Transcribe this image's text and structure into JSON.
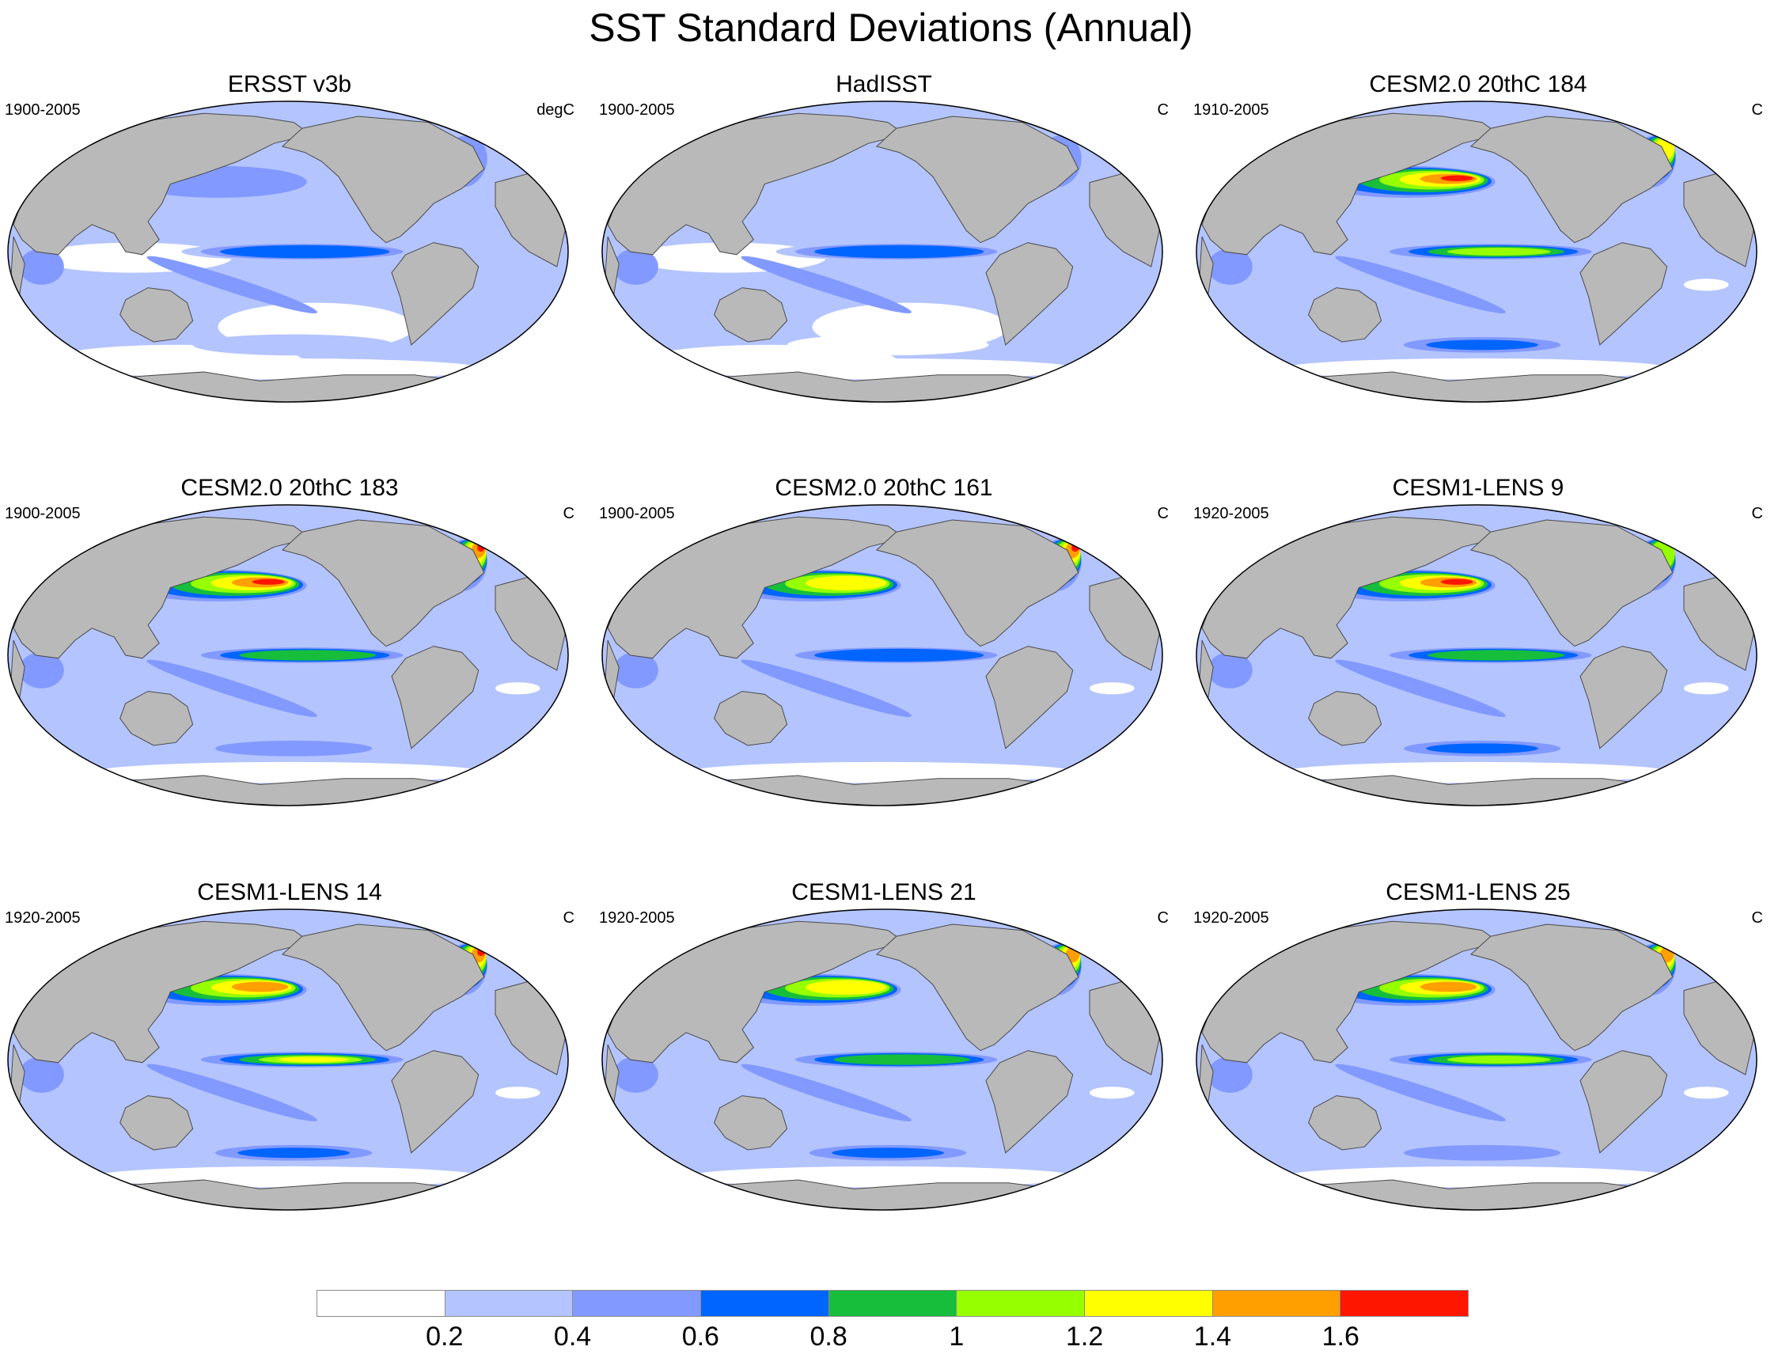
{
  "title": "SST Standard Deviations (Annual)",
  "colors": {
    "land": "#b9b9b9",
    "land_edge": "#4a4a4a",
    "ocean_border": "#000000"
  },
  "legend": {
    "labels": [
      "0.2",
      "0.4",
      "0.6",
      "0.8",
      "1",
      "1.2",
      "1.4",
      "1.6"
    ],
    "colors": [
      "#ffffff",
      "#b4c4ff",
      "#8299ff",
      "#0064ff",
      "#16be3c",
      "#96ff00",
      "#ffff00",
      "#ff9f00",
      "#ff1600"
    ]
  },
  "panels": [
    {
      "title": "ERSST v3b",
      "years": "1900-2005",
      "units": "degC",
      "nino_levels": [
        1,
        2,
        3
      ],
      "npac_levels": [
        1,
        2
      ],
      "natl_levels": [
        1,
        2
      ],
      "so_levels": [
        1
      ],
      "white_gaps": true
    },
    {
      "title": "HadISST",
      "years": "1900-2005",
      "units": "C",
      "nino_levels": [
        1,
        2,
        3
      ],
      "npac_levels": [
        1
      ],
      "natl_levels": [
        1,
        2
      ],
      "so_levels": [
        0
      ],
      "white_gaps": true
    },
    {
      "title": "CESM2.0 20thC 184",
      "years": "1910-2005",
      "units": "C",
      "nino_levels": [
        1,
        2,
        3,
        4,
        5
      ],
      "npac_levels": [
        1,
        2,
        3,
        4,
        5,
        6,
        7,
        8
      ],
      "natl_levels": [
        1,
        2,
        3,
        4,
        5,
        6
      ],
      "so_levels": [
        1,
        2,
        3
      ],
      "white_gaps": false
    },
    {
      "title": "CESM2.0 20thC 183",
      "years": "1900-2005",
      "units": "C",
      "nino_levels": [
        1,
        2,
        3,
        4
      ],
      "npac_levels": [
        1,
        2,
        3,
        4,
        5,
        6,
        7,
        8
      ],
      "natl_levels": [
        1,
        2,
        3,
        4,
        5,
        6,
        7,
        8
      ],
      "so_levels": [
        1,
        2
      ],
      "white_gaps": false
    },
    {
      "title": "CESM2.0 20thC 161",
      "years": "1900-2005",
      "units": "C",
      "nino_levels": [
        1,
        2,
        3
      ],
      "npac_levels": [
        1,
        2,
        3,
        4,
        5,
        6
      ],
      "natl_levels": [
        1,
        2,
        3,
        4,
        5,
        6,
        7,
        8
      ],
      "so_levels": [
        1
      ],
      "white_gaps": false
    },
    {
      "title": "CESM1-LENS 9",
      "years": "1920-2005",
      "units": "C",
      "nino_levels": [
        1,
        2,
        3,
        4
      ],
      "npac_levels": [
        1,
        2,
        3,
        4,
        5,
        6,
        7,
        8
      ],
      "natl_levels": [
        1,
        2,
        3,
        4,
        5
      ],
      "so_levels": [
        1,
        2,
        3
      ],
      "white_gaps": false
    },
    {
      "title": "CESM1-LENS 14",
      "years": "1920-2005",
      "units": "C",
      "nino_levels": [
        1,
        2,
        3,
        4,
        5,
        6
      ],
      "npac_levels": [
        1,
        2,
        3,
        4,
        5,
        6,
        7
      ],
      "natl_levels": [
        1,
        2,
        3,
        4,
        5,
        6,
        7,
        8
      ],
      "so_levels": [
        1,
        2,
        3
      ],
      "white_gaps": false
    },
    {
      "title": "CESM1-LENS 21",
      "years": "1920-2005",
      "units": "C",
      "nino_levels": [
        1,
        2,
        3,
        4
      ],
      "npac_levels": [
        1,
        2,
        3,
        4,
        5,
        6
      ],
      "natl_levels": [
        1,
        2,
        3,
        4,
        5,
        6,
        7
      ],
      "so_levels": [
        1,
        2,
        3
      ],
      "white_gaps": false
    },
    {
      "title": "CESM1-LENS 25",
      "years": "1920-2005",
      "units": "C",
      "nino_levels": [
        1,
        2,
        3,
        4,
        5
      ],
      "npac_levels": [
        1,
        2,
        3,
        4,
        5,
        6,
        7
      ],
      "natl_levels": [
        1,
        2,
        3,
        4,
        5,
        6,
        7
      ],
      "so_levels": [
        1,
        2
      ],
      "white_gaps": false
    }
  ]
}
